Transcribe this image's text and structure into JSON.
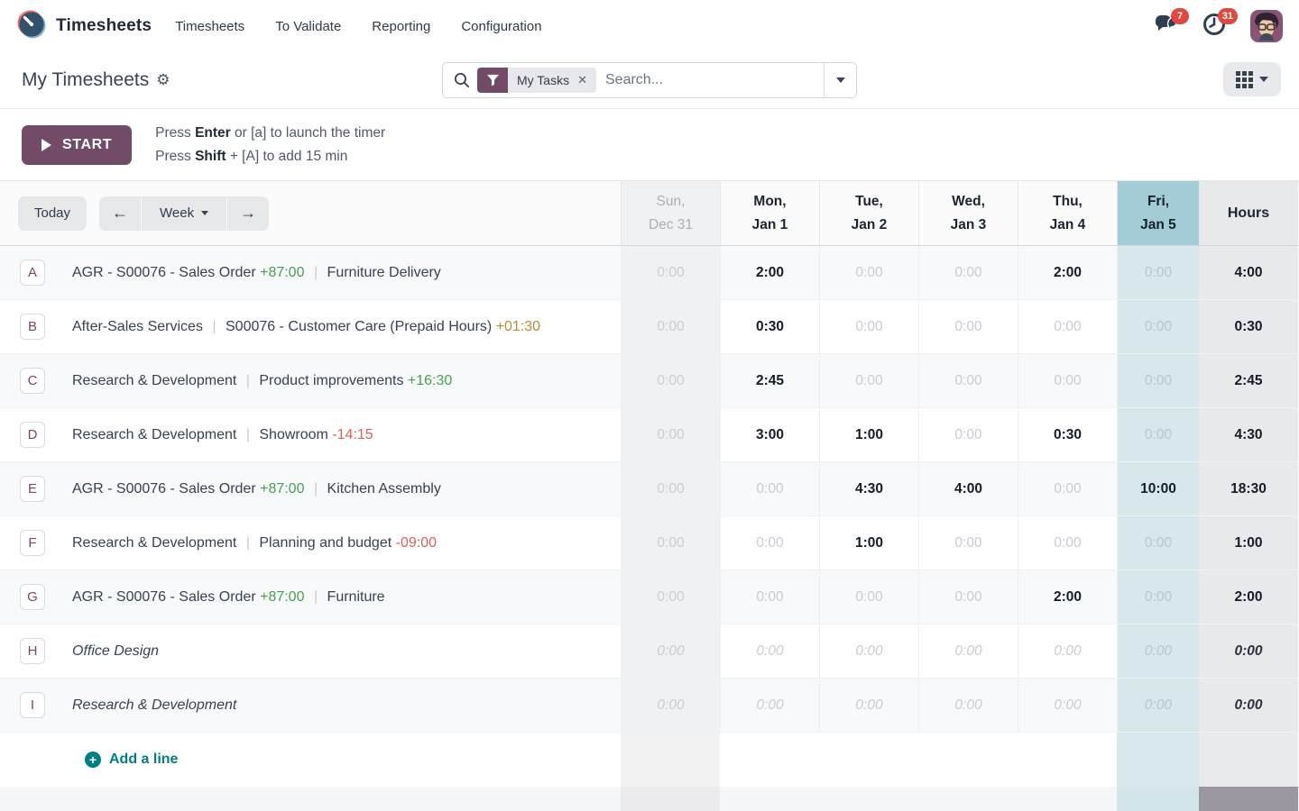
{
  "nav": {
    "brand": "Timesheets",
    "items": [
      "Timesheets",
      "To Validate",
      "Reporting",
      "Configuration"
    ],
    "messages_badge": "7",
    "activities_badge": "31"
  },
  "control_panel": {
    "title": "My Timesheets",
    "search": {
      "facet_label": "My Tasks",
      "placeholder": "Search..."
    }
  },
  "timer": {
    "start_label": "START",
    "hint1_prefix": "Press",
    "hint1_key": "Enter",
    "hint1_suffix": " or [a] to launch the timer",
    "hint2_prefix": "Press",
    "hint2_key": "Shift",
    "hint2_suffix": " + [A] to add 15 min"
  },
  "grid": {
    "nav": {
      "today": "Today",
      "range": "Week",
      "prev": "←",
      "next": "→"
    },
    "hours_label": "Hours",
    "columns": [
      {
        "day": "Sun,",
        "date": "Dec 31",
        "state": "muted"
      },
      {
        "day": "Mon,",
        "date": "Jan 1",
        "state": "normal"
      },
      {
        "day": "Tue,",
        "date": "Jan 2",
        "state": "normal"
      },
      {
        "day": "Wed,",
        "date": "Jan 3",
        "state": "normal"
      },
      {
        "day": "Thu,",
        "date": "Jan 4",
        "state": "normal"
      },
      {
        "day": "Fri,",
        "date": "Jan 5",
        "state": "highlight"
      }
    ],
    "rows": [
      {
        "letter": "A",
        "italic": false,
        "parts": [
          {
            "t": "AGR - S00076 - Sales Order"
          },
          {
            "t": "+87:00",
            "c": "green"
          },
          {
            "t": "|",
            "c": "sep"
          },
          {
            "t": "Furniture Delivery"
          }
        ],
        "cells": [
          "0:00",
          "2:00",
          "0:00",
          "0:00",
          "2:00",
          "0:00"
        ],
        "total": "4:00"
      },
      {
        "letter": "B",
        "italic": false,
        "parts": [
          {
            "t": "After-Sales Services"
          },
          {
            "t": "|",
            "c": "sep"
          },
          {
            "t": "S00076 - Customer Care (Prepaid Hours)"
          },
          {
            "t": "+01:30",
            "c": "amber"
          }
        ],
        "cells": [
          "0:00",
          "0:30",
          "0:00",
          "0:00",
          "0:00",
          "0:00"
        ],
        "total": "0:30"
      },
      {
        "letter": "C",
        "italic": false,
        "parts": [
          {
            "t": "Research & Development"
          },
          {
            "t": "|",
            "c": "sep"
          },
          {
            "t": "Product improvements"
          },
          {
            "t": "+16:30",
            "c": "green"
          }
        ],
        "cells": [
          "0:00",
          "2:45",
          "0:00",
          "0:00",
          "0:00",
          "0:00"
        ],
        "total": "2:45"
      },
      {
        "letter": "D",
        "italic": false,
        "parts": [
          {
            "t": "Research & Development"
          },
          {
            "t": "|",
            "c": "sep"
          },
          {
            "t": "Showroom"
          },
          {
            "t": "-14:15",
            "c": "red"
          }
        ],
        "cells": [
          "0:00",
          "3:00",
          "1:00",
          "0:00",
          "0:30",
          "0:00"
        ],
        "total": "4:30"
      },
      {
        "letter": "E",
        "italic": false,
        "parts": [
          {
            "t": "AGR - S00076 - Sales Order"
          },
          {
            "t": "+87:00",
            "c": "green"
          },
          {
            "t": "|",
            "c": "sep"
          },
          {
            "t": "Kitchen Assembly"
          }
        ],
        "cells": [
          "0:00",
          "0:00",
          "4:30",
          "4:00",
          "0:00",
          "10:00"
        ],
        "total": "18:30"
      },
      {
        "letter": "F",
        "italic": false,
        "parts": [
          {
            "t": "Research & Development"
          },
          {
            "t": "|",
            "c": "sep"
          },
          {
            "t": "Planning and budget"
          },
          {
            "t": "-09:00",
            "c": "red"
          }
        ],
        "cells": [
          "0:00",
          "0:00",
          "1:00",
          "0:00",
          "0:00",
          "0:00"
        ],
        "total": "1:00"
      },
      {
        "letter": "G",
        "italic": false,
        "parts": [
          {
            "t": "AGR - S00076 - Sales Order"
          },
          {
            "t": "+87:00",
            "c": "green"
          },
          {
            "t": "|",
            "c": "sep"
          },
          {
            "t": "Furniture"
          }
        ],
        "cells": [
          "0:00",
          "0:00",
          "0:00",
          "0:00",
          "2:00",
          "0:00"
        ],
        "total": "2:00"
      },
      {
        "letter": "H",
        "italic": true,
        "parts": [
          {
            "t": "Office Design"
          }
        ],
        "cells": [
          "0:00",
          "0:00",
          "0:00",
          "0:00",
          "0:00",
          "0:00"
        ],
        "total": "0:00"
      },
      {
        "letter": "I",
        "italic": true,
        "parts": [
          {
            "t": "Research & Development"
          }
        ],
        "cells": [
          "0:00",
          "0:00",
          "0:00",
          "0:00",
          "0:00",
          "0:00"
        ],
        "total": "0:00"
      }
    ],
    "add_line": "Add a line"
  },
  "colors": {
    "accent_purple": "#714B67",
    "teal_highlight": "#a4ccd6",
    "teal_cell": "#d8e7eb",
    "badge_red": "#e0493f",
    "gain_green": "#4aa052",
    "warn_amber": "#ba8b33",
    "loss_red": "#de5f57",
    "link_teal": "#017e84"
  },
  "icons": [
    "timer-logo-icon",
    "messages-icon",
    "activity-clock-icon",
    "avatar",
    "gear-icon",
    "search-icon",
    "filter-funnel-icon",
    "close-icon",
    "chevron-down-icon",
    "grid-view-icon",
    "play-icon",
    "arrow-left-icon",
    "arrow-right-icon",
    "plus-circle-icon"
  ]
}
